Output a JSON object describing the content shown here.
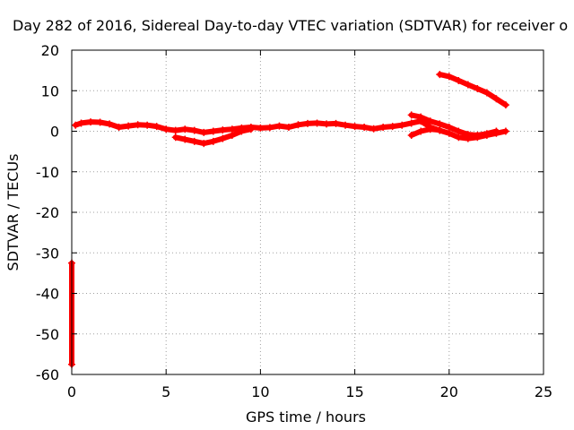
{
  "chart_data": {
    "type": "scatter",
    "title": "Day 282 of 2016, Sidereal Day-to-day VTEC variation (SDTVAR) for receiver o",
    "xlabel": "GPS time / hours",
    "ylabel": "SDTVAR / TECUs",
    "xlim": [
      0,
      25
    ],
    "ylim": [
      -60,
      20
    ],
    "xticks": [
      0,
      5,
      10,
      15,
      20,
      25
    ],
    "yticks": [
      20,
      10,
      0,
      -10,
      -20,
      -30,
      -40,
      -50,
      -60
    ],
    "grid": true,
    "marker_color": "#ff0000",
    "series": [
      {
        "points": [
          [
            0.2,
            1.5
          ],
          [
            0.5,
            2.0
          ],
          [
            1.0,
            2.3
          ],
          [
            1.5,
            2.2
          ],
          [
            2.0,
            1.8
          ],
          [
            2.5,
            1.0
          ],
          [
            3.0,
            1.3
          ],
          [
            3.5,
            1.6
          ],
          [
            4.0,
            1.5
          ],
          [
            4.5,
            1.2
          ],
          [
            5.0,
            0.5
          ],
          [
            5.5,
            0.2
          ],
          [
            6.0,
            0.5
          ],
          [
            6.5,
            0.2
          ],
          [
            7.0,
            -0.3
          ],
          [
            7.5,
            0.0
          ],
          [
            8.0,
            0.3
          ],
          [
            8.5,
            0.5
          ],
          [
            9.0,
            0.8
          ],
          [
            9.5,
            1.0
          ],
          [
            10.0,
            0.8
          ],
          [
            10.5,
            0.9
          ],
          [
            11.0,
            1.3
          ],
          [
            11.5,
            1.0
          ],
          [
            12.0,
            1.6
          ],
          [
            12.5,
            1.9
          ],
          [
            13.0,
            2.0
          ],
          [
            13.5,
            1.8
          ],
          [
            14.0,
            1.9
          ],
          [
            14.5,
            1.5
          ],
          [
            15.0,
            1.2
          ],
          [
            15.5,
            1.0
          ],
          [
            16.0,
            0.6
          ],
          [
            16.5,
            1.0
          ],
          [
            17.0,
            1.2
          ],
          [
            17.5,
            1.5
          ],
          [
            18.0,
            2.0
          ],
          [
            18.5,
            2.5
          ],
          [
            19.0,
            1.0
          ],
          [
            19.5,
            0.2
          ],
          [
            20.0,
            -0.5
          ],
          [
            20.5,
            -1.5
          ],
          [
            21.0,
            -1.8
          ],
          [
            21.5,
            -1.5
          ],
          [
            22.0,
            -1.0
          ],
          [
            22.5,
            -0.5
          ],
          [
            23.0,
            0.0
          ]
        ]
      },
      {
        "points": [
          [
            5.5,
            -1.5
          ],
          [
            6.0,
            -2.0
          ],
          [
            6.5,
            -2.5
          ],
          [
            7.0,
            -3.0
          ],
          [
            7.5,
            -2.5
          ],
          [
            8.0,
            -1.8
          ],
          [
            8.5,
            -1.0
          ],
          [
            9.0,
            0.0
          ],
          [
            9.5,
            0.5
          ]
        ]
      },
      {
        "points": [
          [
            18.0,
            4.0
          ],
          [
            18.5,
            3.5
          ],
          [
            19.0,
            2.5
          ],
          [
            19.5,
            1.8
          ],
          [
            20.0,
            1.0
          ],
          [
            20.5,
            0.0
          ],
          [
            21.0,
            -0.8
          ],
          [
            21.5,
            -1.0
          ],
          [
            22.0,
            -0.6
          ],
          [
            22.5,
            0.0
          ]
        ]
      },
      {
        "points": [
          [
            18.0,
            -1.0
          ],
          [
            18.5,
            0.0
          ],
          [
            19.0,
            0.5
          ],
          [
            19.5,
            0.3
          ]
        ]
      },
      {
        "points": [
          [
            19.5,
            14.0
          ],
          [
            20.0,
            13.5
          ],
          [
            20.5,
            12.5
          ],
          [
            21.0,
            11.5
          ],
          [
            21.5,
            10.5
          ],
          [
            22.0,
            9.5
          ],
          [
            22.5,
            8.0
          ],
          [
            23.0,
            6.5
          ]
        ]
      },
      {
        "points": [
          [
            0.0,
            -32.5
          ],
          [
            0.0,
            -57.5
          ]
        ]
      }
    ]
  }
}
